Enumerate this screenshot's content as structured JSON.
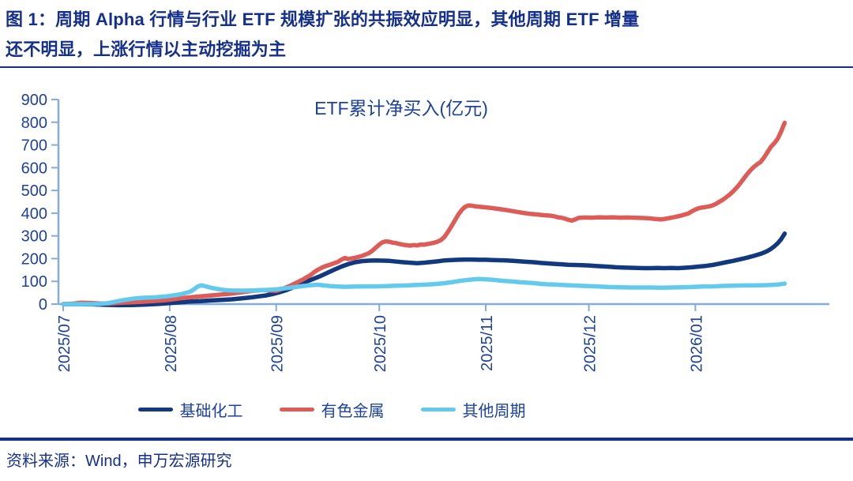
{
  "figure": {
    "title_line1": "图 1：周期 Alpha 行情与行业 ETF 规模扩张的共振效应明显，其他周期 ETF 增量",
    "title_line2": "还不明显，上涨行情以主动挖掘为主",
    "source": "资料来源：Wind，申万宏源研究"
  },
  "colors": {
    "title_text": "#15308c",
    "axis_text": "#1c419e",
    "axis_line": "#84aed8",
    "rule": "#15308c"
  },
  "chart_data": {
    "type": "line",
    "title": "ETF累计净买入(亿元)",
    "ylabel": "",
    "xlabel": "",
    "ylim": [
      0,
      900
    ],
    "y_ticks": [
      0,
      100,
      200,
      300,
      400,
      500,
      600,
      700,
      800,
      900
    ],
    "x_ticks": [
      {
        "label": "2025/07",
        "day": 0
      },
      {
        "label": "2025/08",
        "day": 31
      },
      {
        "label": "2025/09",
        "day": 62
      },
      {
        "label": "2025/10",
        "day": 92
      },
      {
        "label": "2025/11",
        "day": 123
      },
      {
        "label": "2025/12",
        "day": 153
      },
      {
        "label": "2026/01",
        "day": 184
      }
    ],
    "x_day_span": [
      0,
      210
    ],
    "grid": false,
    "legend_position": "bottom",
    "series": [
      {
        "name": "基础化工",
        "color": "#12387e",
        "points": [
          [
            0,
            0
          ],
          [
            4,
            0
          ],
          [
            8,
            -1
          ],
          [
            12,
            -3
          ],
          [
            16,
            -5
          ],
          [
            20,
            -4
          ],
          [
            24,
            -2
          ],
          [
            28,
            1
          ],
          [
            31,
            4
          ],
          [
            34,
            8
          ],
          [
            37,
            11
          ],
          [
            40,
            13
          ],
          [
            43,
            16
          ],
          [
            46,
            18
          ],
          [
            49,
            21
          ],
          [
            52,
            25
          ],
          [
            55,
            30
          ],
          [
            57,
            34
          ],
          [
            59,
            38
          ],
          [
            61,
            44
          ],
          [
            63,
            52
          ],
          [
            65,
            62
          ],
          [
            67,
            74
          ],
          [
            69,
            88
          ],
          [
            71,
            100
          ],
          [
            73,
            112
          ],
          [
            75,
            124
          ],
          [
            77,
            138
          ],
          [
            79,
            152
          ],
          [
            81,
            165
          ],
          [
            83,
            176
          ],
          [
            85,
            184
          ],
          [
            87,
            189
          ],
          [
            89,
            191
          ],
          [
            91,
            192
          ],
          [
            93,
            191
          ],
          [
            95,
            190
          ],
          [
            97,
            187
          ],
          [
            99,
            184
          ],
          [
            101,
            182
          ],
          [
            103,
            180
          ],
          [
            105,
            182
          ],
          [
            107,
            185
          ],
          [
            109,
            188
          ],
          [
            111,
            192
          ],
          [
            113,
            194
          ],
          [
            115,
            195
          ],
          [
            117,
            196
          ],
          [
            119,
            196
          ],
          [
            121,
            195
          ],
          [
            123,
            195
          ],
          [
            125,
            194
          ],
          [
            127,
            193
          ],
          [
            129,
            192
          ],
          [
            131,
            190
          ],
          [
            133,
            188
          ],
          [
            135,
            186
          ],
          [
            137,
            184
          ],
          [
            139,
            181
          ],
          [
            141,
            179
          ],
          [
            143,
            177
          ],
          [
            145,
            175
          ],
          [
            147,
            173
          ],
          [
            149,
            172
          ],
          [
            151,
            171
          ],
          [
            153,
            170
          ],
          [
            155,
            168
          ],
          [
            157,
            166
          ],
          [
            159,
            164
          ],
          [
            161,
            162
          ],
          [
            163,
            161
          ],
          [
            165,
            160
          ],
          [
            167,
            159
          ],
          [
            169,
            158
          ],
          [
            171,
            158
          ],
          [
            173,
            159
          ],
          [
            175,
            158
          ],
          [
            177,
            159
          ],
          [
            179,
            158
          ],
          [
            181,
            160
          ],
          [
            183,
            162
          ],
          [
            185,
            165
          ],
          [
            187,
            168
          ],
          [
            189,
            172
          ],
          [
            191,
            178
          ],
          [
            193,
            184
          ],
          [
            195,
            190
          ],
          [
            197,
            197
          ],
          [
            199,
            204
          ],
          [
            201,
            212
          ],
          [
            203,
            221
          ],
          [
            204,
            227
          ],
          [
            205,
            234
          ],
          [
            206,
            243
          ],
          [
            207,
            254
          ],
          [
            208,
            268
          ],
          [
            209,
            286
          ],
          [
            210,
            310
          ]
        ]
      },
      {
        "name": "有色金属",
        "color": "#dd5c57",
        "points": [
          [
            0,
            0
          ],
          [
            3,
            2
          ],
          [
            5,
            6
          ],
          [
            8,
            5
          ],
          [
            11,
            2
          ],
          [
            14,
            3
          ],
          [
            17,
            6
          ],
          [
            20,
            8
          ],
          [
            23,
            10
          ],
          [
            26,
            13
          ],
          [
            29,
            16
          ],
          [
            31,
            19
          ],
          [
            34,
            25
          ],
          [
            37,
            30
          ],
          [
            40,
            34
          ],
          [
            43,
            38
          ],
          [
            46,
            42
          ],
          [
            49,
            46
          ],
          [
            52,
            52
          ],
          [
            55,
            58
          ],
          [
            58,
            62
          ],
          [
            60,
            60
          ],
          [
            62,
            58
          ],
          [
            64,
            68
          ],
          [
            66,
            80
          ],
          [
            68,
            95
          ],
          [
            70,
            110
          ],
          [
            72,
            128
          ],
          [
            73,
            140
          ],
          [
            74,
            150
          ],
          [
            75,
            158
          ],
          [
            76,
            165
          ],
          [
            78,
            175
          ],
          [
            80,
            186
          ],
          [
            81,
            196
          ],
          [
            82,
            203
          ],
          [
            83,
            198
          ],
          [
            85,
            204
          ],
          [
            87,
            212
          ],
          [
            89,
            224
          ],
          [
            90,
            235
          ],
          [
            91,
            248
          ],
          [
            92,
            262
          ],
          [
            93,
            272
          ],
          [
            94,
            276
          ],
          [
            95,
            274
          ],
          [
            96,
            270
          ],
          [
            97,
            268
          ],
          [
            98,
            264
          ],
          [
            99,
            261
          ],
          [
            100,
            259
          ],
          [
            101,
            257
          ],
          [
            102,
            260
          ],
          [
            103,
            258
          ],
          [
            104,
            262
          ],
          [
            105,
            261
          ],
          [
            106,
            264
          ],
          [
            107,
            267
          ],
          [
            108,
            270
          ],
          [
            109,
            275
          ],
          [
            110,
            282
          ],
          [
            111,
            296
          ],
          [
            112,
            318
          ],
          [
            113,
            342
          ],
          [
            114,
            368
          ],
          [
            115,
            394
          ],
          [
            116,
            414
          ],
          [
            117,
            428
          ],
          [
            118,
            434
          ],
          [
            119,
            433
          ],
          [
            120,
            430
          ],
          [
            122,
            427
          ],
          [
            124,
            424
          ],
          [
            126,
            420
          ],
          [
            128,
            416
          ],
          [
            130,
            411
          ],
          [
            132,
            406
          ],
          [
            134,
            401
          ],
          [
            136,
            397
          ],
          [
            138,
            394
          ],
          [
            140,
            391
          ],
          [
            142,
            389
          ],
          [
            143,
            386
          ],
          [
            144,
            382
          ],
          [
            145,
            380
          ],
          [
            146,
            376
          ],
          [
            147,
            371
          ],
          [
            148,
            367
          ],
          [
            149,
            372
          ],
          [
            150,
            379
          ],
          [
            152,
            381
          ],
          [
            154,
            380
          ],
          [
            156,
            382
          ],
          [
            158,
            381
          ],
          [
            160,
            382
          ],
          [
            162,
            380
          ],
          [
            164,
            381
          ],
          [
            166,
            380
          ],
          [
            168,
            379
          ],
          [
            170,
            378
          ],
          [
            172,
            375
          ],
          [
            174,
            372
          ],
          [
            176,
            377
          ],
          [
            178,
            383
          ],
          [
            180,
            390
          ],
          [
            182,
            399
          ],
          [
            183,
            408
          ],
          [
            184,
            416
          ],
          [
            185,
            422
          ],
          [
            186,
            425
          ],
          [
            187,
            427
          ],
          [
            188,
            430
          ],
          [
            189,
            434
          ],
          [
            190,
            441
          ],
          [
            191,
            450
          ],
          [
            192,
            459
          ],
          [
            193,
            470
          ],
          [
            194,
            482
          ],
          [
            195,
            496
          ],
          [
            196,
            512
          ],
          [
            197,
            530
          ],
          [
            198,
            550
          ],
          [
            199,
            570
          ],
          [
            200,
            588
          ],
          [
            201,
            603
          ],
          [
            202,
            615
          ],
          [
            203,
            625
          ],
          [
            204,
            645
          ],
          [
            205,
            668
          ],
          [
            206,
            692
          ],
          [
            207,
            708
          ],
          [
            208,
            728
          ],
          [
            209,
            760
          ],
          [
            210,
            798
          ]
        ]
      },
      {
        "name": "其他周期",
        "color": "#63caee",
        "points": [
          [
            0,
            0
          ],
          [
            4,
            0
          ],
          [
            8,
            0
          ],
          [
            11,
            1
          ],
          [
            13,
            4
          ],
          [
            15,
            10
          ],
          [
            17,
            16
          ],
          [
            19,
            21
          ],
          [
            21,
            25
          ],
          [
            24,
            28
          ],
          [
            27,
            30
          ],
          [
            30,
            34
          ],
          [
            33,
            40
          ],
          [
            35,
            46
          ],
          [
            37,
            55
          ],
          [
            38,
            64
          ],
          [
            39,
            76
          ],
          [
            40,
            82
          ],
          [
            41,
            80
          ],
          [
            42,
            76
          ],
          [
            43,
            72
          ],
          [
            45,
            66
          ],
          [
            47,
            62
          ],
          [
            49,
            60
          ],
          [
            52,
            59
          ],
          [
            55,
            60
          ],
          [
            58,
            62
          ],
          [
            60,
            63
          ],
          [
            62,
            65
          ],
          [
            64,
            68
          ],
          [
            66,
            72
          ],
          [
            68,
            76
          ],
          [
            70,
            80
          ],
          [
            72,
            83
          ],
          [
            74,
            85
          ],
          [
            76,
            82
          ],
          [
            78,
            79
          ],
          [
            80,
            77
          ],
          [
            82,
            76
          ],
          [
            85,
            77
          ],
          [
            88,
            78
          ],
          [
            91,
            78
          ],
          [
            94,
            79
          ],
          [
            97,
            81
          ],
          [
            100,
            82
          ],
          [
            103,
            84
          ],
          [
            106,
            86
          ],
          [
            109,
            89
          ],
          [
            111,
            92
          ],
          [
            113,
            96
          ],
          [
            115,
            101
          ],
          [
            117,
            105
          ],
          [
            119,
            108
          ],
          [
            121,
            110
          ],
          [
            123,
            109
          ],
          [
            125,
            107
          ],
          [
            127,
            104
          ],
          [
            129,
            101
          ],
          [
            131,
            99
          ],
          [
            133,
            96
          ],
          [
            135,
            94
          ],
          [
            137,
            92
          ],
          [
            139,
            89
          ],
          [
            141,
            87
          ],
          [
            143,
            86
          ],
          [
            145,
            84
          ],
          [
            147,
            83
          ],
          [
            150,
            81
          ],
          [
            153,
            79
          ],
          [
            156,
            77
          ],
          [
            159,
            75
          ],
          [
            162,
            74
          ],
          [
            165,
            73
          ],
          [
            168,
            73
          ],
          [
            171,
            73
          ],
          [
            174,
            72
          ],
          [
            177,
            73
          ],
          [
            180,
            74
          ],
          [
            183,
            75
          ],
          [
            186,
            77
          ],
          [
            189,
            78
          ],
          [
            192,
            80
          ],
          [
            195,
            81
          ],
          [
            198,
            82
          ],
          [
            201,
            82
          ],
          [
            204,
            83
          ],
          [
            206,
            84
          ],
          [
            208,
            86
          ],
          [
            209,
            88
          ],
          [
            210,
            90
          ]
        ]
      }
    ]
  }
}
